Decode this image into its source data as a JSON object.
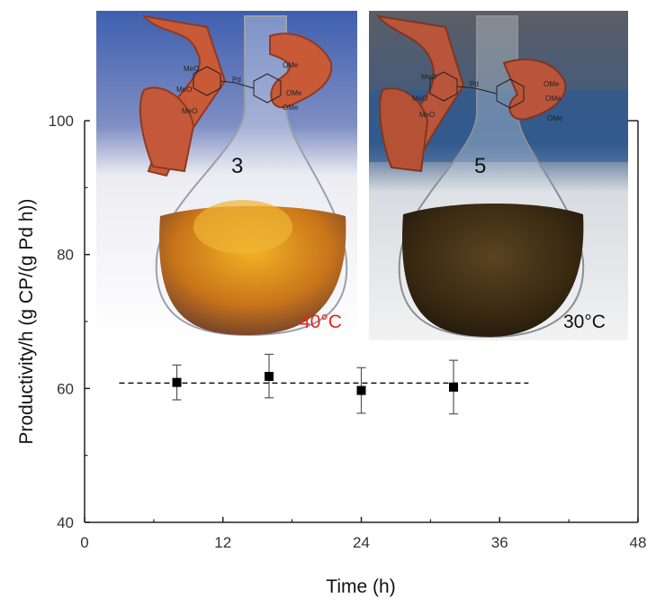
{
  "chart_data": {
    "type": "scatter",
    "xlabel": "Time (h)",
    "ylabel": "Productivity/h (g CP/(g Pd h))",
    "xlim": [
      0,
      48
    ],
    "ylim": [
      40,
      100
    ],
    "xticks": [
      "0",
      "12",
      "24",
      "36",
      "48"
    ],
    "yticks": [
      "40",
      "60",
      "80",
      "100"
    ],
    "series": [
      {
        "marker": "square",
        "color": "#000000",
        "points": [
          {
            "x": 8,
            "y": 60.9,
            "err_low": 2.6,
            "err_high": 2.6
          },
          {
            "x": 16,
            "y": 61.8,
            "err_low": 3.2,
            "err_high": 3.3
          },
          {
            "x": 24,
            "y": 59.7,
            "err_low": 3.4,
            "err_high": 3.4
          },
          {
            "x": 32,
            "y": 60.2,
            "err_low": 4.0,
            "err_high": 4.0
          }
        ]
      }
    ],
    "reference_line": {
      "y": 60.8,
      "x_from": 3,
      "x_to": 38.5,
      "style": "dashed"
    },
    "grid": false
  },
  "insets": [
    {
      "number": "3",
      "temperature": "40°C",
      "temperature_color": "#e8241c",
      "liquid_color": "#c07018",
      "background": "light"
    },
    {
      "number": "5",
      "temperature": "30°C",
      "temperature_color": "#111111",
      "liquid_color": "#2f2210",
      "background": "dark"
    }
  ]
}
